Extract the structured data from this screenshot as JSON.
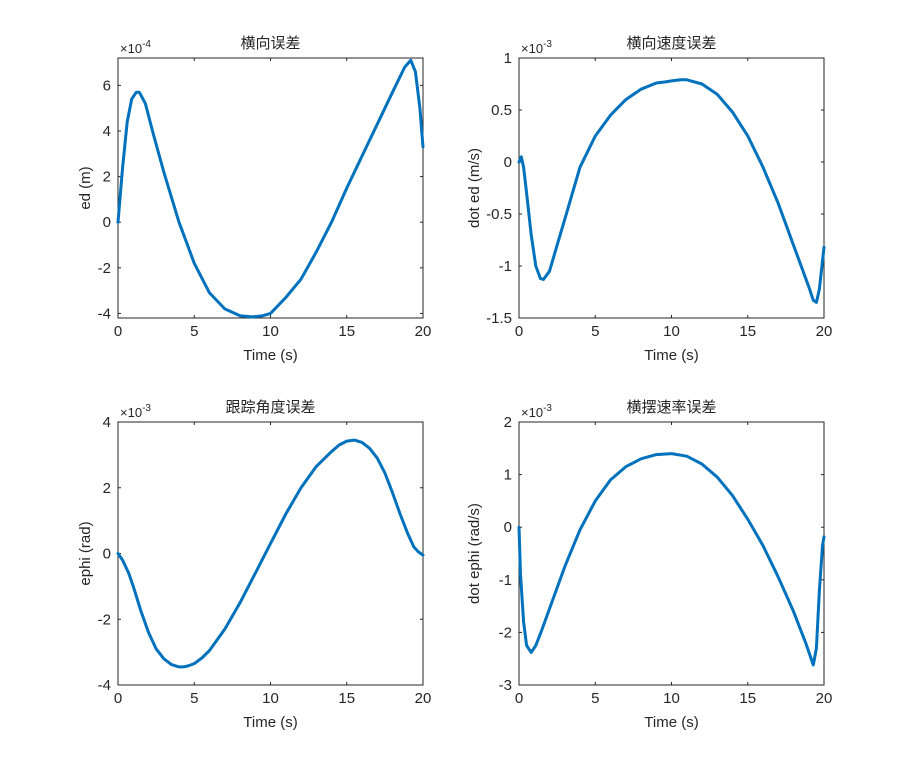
{
  "figure": {
    "background": "#ffffff",
    "axes_color": "#262626",
    "line_color": "#0072BD"
  },
  "chart_data": [
    {
      "type": "line",
      "title": "横向误差",
      "xlabel": "Time (s)",
      "ylabel": "ed (m)",
      "y_exponent_base": "×10",
      "y_exponent": "-4",
      "xlim": [
        0,
        20
      ],
      "ylim": [
        -4.2,
        7.2
      ],
      "xticks": [
        0,
        5,
        10,
        15,
        20
      ],
      "yticks": [
        -4,
        -2,
        0,
        2,
        4,
        6
      ],
      "xtick_labels": [
        "0",
        "5",
        "10",
        "15",
        "20"
      ],
      "ytick_labels": [
        "-4",
        "-2",
        "0",
        "2",
        "4",
        "6"
      ],
      "grid": false,
      "series": [
        {
          "x": [
            0,
            0.3,
            0.6,
            0.9,
            1.2,
            1.4,
            1.8,
            2.3,
            3,
            4,
            5,
            6,
            7,
            8,
            8.8,
            9.5,
            10,
            11,
            12,
            13,
            14,
            15,
            16,
            17,
            18,
            18.8,
            19.2,
            19.5,
            19.8,
            20
          ],
          "y": [
            0,
            2.4,
            4.4,
            5.4,
            5.7,
            5.7,
            5.2,
            3.9,
            2.2,
            0,
            -1.8,
            -3.1,
            -3.8,
            -4.1,
            -4.15,
            -4.1,
            -4.0,
            -3.3,
            -2.5,
            -1.3,
            0,
            1.5,
            2.9,
            4.3,
            5.7,
            6.8,
            7.1,
            6.6,
            5.0,
            3.3
          ]
        }
      ]
    },
    {
      "type": "line",
      "title": "横向速度误差",
      "xlabel": "Time (s)",
      "ylabel": "dot ed (m/s)",
      "y_exponent_base": "×10",
      "y_exponent": "-3",
      "xlim": [
        0,
        20
      ],
      "ylim": [
        -1.5,
        1.0
      ],
      "xticks": [
        0,
        5,
        10,
        15,
        20
      ],
      "yticks": [
        -1.5,
        -1,
        -0.5,
        0,
        0.5,
        1
      ],
      "xtick_labels": [
        "0",
        "5",
        "10",
        "15",
        "20"
      ],
      "ytick_labels": [
        "-1.5",
        "-1",
        "-0.5",
        "0",
        "0.5",
        "1"
      ],
      "grid": false,
      "series": [
        {
          "x": [
            0,
            0.15,
            0.3,
            0.5,
            0.8,
            1.1,
            1.4,
            1.6,
            2,
            2.5,
            3,
            4,
            5,
            6,
            7,
            8,
            9,
            9.6,
            10,
            10.6,
            11,
            12,
            13,
            14,
            15,
            16,
            17,
            18,
            19,
            19.3,
            19.5,
            19.7,
            19.9,
            20
          ],
          "y": [
            0,
            0.05,
            -0.05,
            -0.3,
            -0.7,
            -1.0,
            -1.12,
            -1.13,
            -1.05,
            -0.8,
            -0.55,
            -0.05,
            0.25,
            0.45,
            0.6,
            0.7,
            0.76,
            0.77,
            0.78,
            0.79,
            0.79,
            0.75,
            0.65,
            0.48,
            0.25,
            -0.05,
            -0.4,
            -0.8,
            -1.2,
            -1.33,
            -1.35,
            -1.22,
            -0.95,
            -0.82
          ]
        }
      ]
    },
    {
      "type": "line",
      "title": "跟踪角度误差",
      "xlabel": "Time (s)",
      "ylabel": "ephi (rad)",
      "y_exponent_base": "×10",
      "y_exponent": "-3",
      "xlim": [
        0,
        20
      ],
      "ylim": [
        -4,
        4
      ],
      "xticks": [
        0,
        5,
        10,
        15,
        20
      ],
      "yticks": [
        -4,
        -2,
        0,
        2,
        4
      ],
      "xtick_labels": [
        "0",
        "5",
        "10",
        "15",
        "20"
      ],
      "ytick_labels": [
        "-4",
        "-2",
        "0",
        "2",
        "4"
      ],
      "grid": false,
      "series": [
        {
          "x": [
            0,
            0.3,
            0.7,
            1,
            1.5,
            2,
            2.5,
            3,
            3.5,
            4,
            4.3,
            4.6,
            5,
            5.5,
            6,
            7,
            8,
            9,
            10,
            11,
            12,
            13,
            14,
            14.5,
            15,
            15.5,
            16,
            16.5,
            17,
            17.5,
            18,
            18.5,
            19,
            19.4,
            19.7,
            20
          ],
          "y": [
            0,
            -0.2,
            -0.6,
            -1.0,
            -1.75,
            -2.4,
            -2.9,
            -3.2,
            -3.38,
            -3.45,
            -3.45,
            -3.42,
            -3.35,
            -3.18,
            -2.95,
            -2.3,
            -1.5,
            -0.6,
            0.3,
            1.2,
            2.0,
            2.65,
            3.1,
            3.3,
            3.42,
            3.45,
            3.38,
            3.2,
            2.9,
            2.45,
            1.85,
            1.2,
            0.6,
            0.2,
            0.05,
            -0.05
          ]
        }
      ]
    },
    {
      "type": "line",
      "title": "横摆速率误差",
      "xlabel": "Time (s)",
      "ylabel": "dot ephi (rad/s)",
      "y_exponent_base": "×10",
      "y_exponent": "-3",
      "xlim": [
        0,
        20
      ],
      "ylim": [
        -3,
        2
      ],
      "xticks": [
        0,
        5,
        10,
        15,
        20
      ],
      "yticks": [
        -3,
        -2,
        -1,
        0,
        1,
        2
      ],
      "xtick_labels": [
        "0",
        "5",
        "10",
        "15",
        "20"
      ],
      "ytick_labels": [
        "-3",
        "-2",
        "-1",
        "0",
        "1",
        "2"
      ],
      "grid": false,
      "series": [
        {
          "x": [
            0,
            0.1,
            0.3,
            0.5,
            0.8,
            1.1,
            1.5,
            2,
            3,
            4,
            5,
            6,
            7,
            8,
            9,
            10,
            11,
            12,
            13,
            14,
            15,
            16,
            17,
            18,
            18.8,
            19.3,
            19.5,
            19.7,
            19.9,
            20
          ],
          "y": [
            0,
            -0.9,
            -1.8,
            -2.25,
            -2.38,
            -2.25,
            -1.95,
            -1.55,
            -0.75,
            -0.05,
            0.5,
            0.9,
            1.15,
            1.3,
            1.38,
            1.4,
            1.35,
            1.2,
            0.95,
            0.6,
            0.15,
            -0.35,
            -0.95,
            -1.6,
            -2.2,
            -2.62,
            -2.3,
            -1.2,
            -0.35,
            -0.18
          ]
        }
      ]
    }
  ]
}
